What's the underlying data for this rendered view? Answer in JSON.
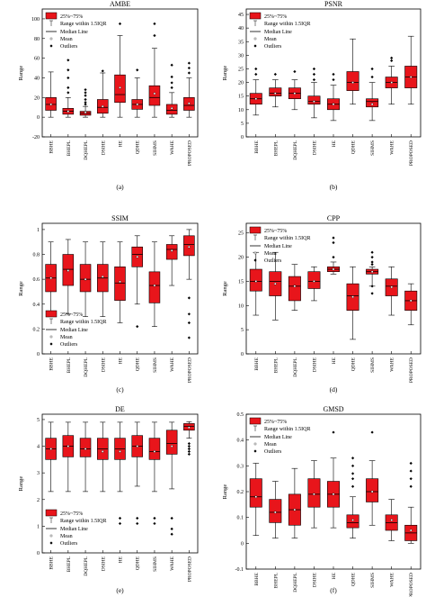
{
  "legend": {
    "box": "25%~75%",
    "range": "Range within 1.5IQR",
    "median": "Median Line",
    "mean": "Mean",
    "outliers": "Outliers"
  },
  "colors": {
    "box_fill": "#e8151b",
    "box_stroke": "#000000"
  },
  "chart_data": [
    {
      "type": "box",
      "title": "AMBE",
      "ylabel": "Range",
      "caption": "(a)",
      "ylim": [
        -20,
        110
      ],
      "yticks": [
        -20,
        0,
        20,
        40,
        60,
        80,
        100
      ],
      "legend_position": "top-left",
      "categories": [
        "BBHE",
        "BHEPL",
        "DQHEPL",
        "DSIHE",
        "HE",
        "QDHE",
        "SIHMS",
        "WAHE",
        "PROPOSED"
      ],
      "boxes": [
        {
          "min": 0,
          "q1": 7,
          "median": 13,
          "q3": 20,
          "max": 46,
          "mean": 13,
          "outliers": []
        },
        {
          "min": 0,
          "q1": 3,
          "median": 6,
          "q3": 9,
          "max": 20,
          "mean": 6,
          "outliers": [
            25,
            30,
            40,
            48,
            58
          ]
        },
        {
          "min": 0,
          "q1": 2,
          "median": 4,
          "q3": 6,
          "max": 11,
          "mean": 5,
          "outliers": [
            13,
            15,
            18,
            22,
            25,
            28
          ]
        },
        {
          "min": 0,
          "q1": 4,
          "median": 10,
          "q3": 18,
          "max": 45,
          "mean": 11,
          "outliers": [
            47
          ]
        },
        {
          "min": 0,
          "q1": 15,
          "median": 23,
          "q3": 43,
          "max": 83,
          "mean": 30,
          "outliers": [
            95
          ]
        },
        {
          "min": 0,
          "q1": 8,
          "median": 13,
          "q3": 18,
          "max": 40,
          "mean": 13,
          "outliers": [
            48
          ]
        },
        {
          "min": 0,
          "q1": 12,
          "median": 20,
          "q3": 32,
          "max": 70,
          "mean": 24,
          "outliers": [
            83,
            95
          ]
        },
        {
          "min": 0,
          "q1": 3,
          "median": 7,
          "q3": 13,
          "max": 25,
          "mean": 9,
          "outliers": [
            30,
            35,
            41,
            53
          ]
        },
        {
          "min": 0,
          "q1": 7,
          "median": 12,
          "q3": 20,
          "max": 40,
          "mean": 14,
          "outliers": [
            45,
            50,
            55
          ]
        }
      ]
    },
    {
      "type": "box",
      "title": "PSNR",
      "ylabel": "Range",
      "caption": "(b)",
      "ylim": [
        0,
        47
      ],
      "yticks": [
        0,
        5,
        10,
        15,
        20,
        25,
        30,
        35,
        40,
        45
      ],
      "legend_position": "top-left",
      "categories": [
        "BBHE",
        "BHEPL",
        "DQHEPL",
        "DSIHE",
        "HE",
        "QDHE",
        "SIHMS",
        "WAHE",
        "PROPOSED"
      ],
      "boxes": [
        {
          "min": 8,
          "q1": 12,
          "median": 14,
          "q3": 16,
          "max": 21,
          "mean": 14,
          "outliers": [
            23,
            25
          ]
        },
        {
          "min": 11,
          "q1": 15,
          "median": 16,
          "q3": 18,
          "max": 21,
          "mean": 16,
          "outliers": [
            23
          ]
        },
        {
          "min": 10,
          "q1": 14,
          "median": 16,
          "q3": 18,
          "max": 21,
          "mean": 16,
          "outliers": [
            24
          ]
        },
        {
          "min": 7,
          "q1": 12,
          "median": 13,
          "q3": 15,
          "max": 20,
          "mean": 13,
          "outliers": [
            21,
            23,
            25
          ]
        },
        {
          "min": 6,
          "q1": 10,
          "median": 12,
          "q3": 14,
          "max": 19,
          "mean": 12,
          "outliers": [
            21,
            23
          ]
        },
        {
          "min": 12,
          "q1": 17,
          "median": 20,
          "q3": 24,
          "max": 36,
          "mean": 20,
          "outliers": []
        },
        {
          "min": 6,
          "q1": 11,
          "median": 13,
          "q3": 14,
          "max": 20,
          "mean": 12,
          "outliers": [
            22,
            25
          ]
        },
        {
          "min": 12,
          "q1": 18,
          "median": 20,
          "q3": 22,
          "max": 26,
          "mean": 20,
          "outliers": [
            28,
            29
          ]
        },
        {
          "min": 12,
          "q1": 18,
          "median": 22,
          "q3": 26,
          "max": 37,
          "mean": 22,
          "outliers": []
        }
      ]
    },
    {
      "type": "box",
      "title": "SSIM",
      "ylabel": "Range",
      "caption": "(c)",
      "ylim": [
        0,
        1.05
      ],
      "yticks": [
        0,
        0.2,
        0.4,
        0.6,
        0.8,
        1
      ],
      "legend_position": "bottom-left",
      "categories": [
        "BBHE",
        "BHEPL",
        "DQHEPL",
        "DSIHE",
        "HE",
        "QDHE",
        "SIHMS",
        "WAHE",
        "PROPOSED"
      ],
      "boxes": [
        {
          "min": 0.3,
          "q1": 0.5,
          "median": 0.61,
          "q3": 0.72,
          "max": 0.9,
          "mean": 0.61,
          "outliers": []
        },
        {
          "min": 0.32,
          "q1": 0.55,
          "median": 0.68,
          "q3": 0.8,
          "max": 0.92,
          "mean": 0.67,
          "outliers": []
        },
        {
          "min": 0.3,
          "q1": 0.5,
          "median": 0.6,
          "q3": 0.72,
          "max": 0.9,
          "mean": 0.6,
          "outliers": []
        },
        {
          "min": 0.3,
          "q1": 0.5,
          "median": 0.61,
          "q3": 0.72,
          "max": 0.9,
          "mean": 0.62,
          "outliers": []
        },
        {
          "min": 0.25,
          "q1": 0.43,
          "median": 0.57,
          "q3": 0.7,
          "max": 0.9,
          "mean": 0.58,
          "outliers": []
        },
        {
          "min": 0.4,
          "q1": 0.7,
          "median": 0.8,
          "q3": 0.86,
          "max": 0.95,
          "mean": 0.78,
          "outliers": [
            0.22
          ]
        },
        {
          "min": 0.22,
          "q1": 0.41,
          "median": 0.55,
          "q3": 0.66,
          "max": 0.9,
          "mean": 0.55,
          "outliers": []
        },
        {
          "min": 0.55,
          "q1": 0.76,
          "median": 0.84,
          "q3": 0.88,
          "max": 0.95,
          "mean": 0.83,
          "outliers": []
        },
        {
          "min": 0.6,
          "q1": 0.79,
          "median": 0.88,
          "q3": 0.95,
          "max": 1.0,
          "mean": 0.86,
          "outliers": [
            0.13,
            0.25,
            0.32,
            0.45
          ]
        }
      ]
    },
    {
      "type": "box",
      "title": "CPP",
      "ylabel": "Range",
      "caption": "(d)",
      "ylim": [
        0,
        27
      ],
      "yticks": [
        0,
        5,
        10,
        15,
        20,
        25
      ],
      "legend_position": "top-left",
      "categories": [
        "BBHE",
        "BHEPL",
        "DQHEPL",
        "DSIHE",
        "HE",
        "QDHE",
        "SIHMS",
        "WAHE",
        "PROPOSED"
      ],
      "boxes": [
        {
          "min": 8,
          "q1": 13,
          "median": 15,
          "q3": 17.5,
          "max": 21,
          "mean": 15,
          "outliers": []
        },
        {
          "min": 7,
          "q1": 12,
          "median": 15,
          "q3": 17,
          "max": 21,
          "mean": 14.5,
          "outliers": []
        },
        {
          "min": 9,
          "q1": 11,
          "median": 14,
          "q3": 16,
          "max": 18.5,
          "mean": 14,
          "outliers": []
        },
        {
          "min": 11,
          "q1": 13.5,
          "median": 15,
          "q3": 17,
          "max": 18,
          "mean": 15,
          "outliers": []
        },
        {
          "min": 16.5,
          "q1": 17,
          "median": 17.5,
          "q3": 18,
          "max": 19,
          "mean": 17.5,
          "outliers": [
            20,
            23,
            24
          ]
        },
        {
          "min": 3,
          "q1": 9,
          "median": 12,
          "q3": 14.5,
          "max": 18,
          "mean": 11.8,
          "outliers": []
        },
        {
          "min": 14,
          "q1": 16.5,
          "median": 17,
          "q3": 17.5,
          "max": 18,
          "mean": 17,
          "outliers": [
            12.5,
            14,
            18.5,
            19,
            20,
            21
          ]
        },
        {
          "min": 8,
          "q1": 12,
          "median": 14,
          "q3": 15.5,
          "max": 18,
          "mean": 13.8,
          "outliers": []
        },
        {
          "min": 6,
          "q1": 9,
          "median": 11,
          "q3": 13,
          "max": 14.5,
          "mean": 11,
          "outliers": []
        }
      ]
    },
    {
      "type": "box",
      "title": "DE",
      "ylabel": "Range",
      "caption": "(e)",
      "ylim": [
        0,
        5.2
      ],
      "yticks": [
        0,
        1,
        2,
        3,
        4,
        5
      ],
      "legend_position": "bottom-left",
      "categories": [
        "BBHE",
        "BHEPL",
        "DQHEPL",
        "DSIHE",
        "HE",
        "QDHE",
        "SIHMS",
        "WAHE",
        "PROPOSED"
      ],
      "boxes": [
        {
          "min": 2.3,
          "q1": 3.5,
          "median": 3.9,
          "q3": 4.3,
          "max": 4.9,
          "mean": 3.9,
          "outliers": []
        },
        {
          "min": 2.3,
          "q1": 3.6,
          "median": 4.0,
          "q3": 4.4,
          "max": 4.9,
          "mean": 4.0,
          "outliers": []
        },
        {
          "min": 2.3,
          "q1": 3.6,
          "median": 3.9,
          "q3": 4.3,
          "max": 4.9,
          "mean": 3.9,
          "outliers": []
        },
        {
          "min": 2.3,
          "q1": 3.5,
          "median": 3.9,
          "q3": 4.3,
          "max": 4.9,
          "mean": 3.8,
          "outliers": []
        },
        {
          "min": 2.3,
          "q1": 3.5,
          "median": 3.9,
          "q3": 4.3,
          "max": 4.9,
          "mean": 3.8,
          "outliers": [
            1.1,
            1.3
          ]
        },
        {
          "min": 2.5,
          "q1": 3.6,
          "median": 4.0,
          "q3": 4.4,
          "max": 4.9,
          "mean": 4.0,
          "outliers": [
            1.1,
            1.3
          ]
        },
        {
          "min": 2.3,
          "q1": 3.5,
          "median": 3.8,
          "q3": 4.3,
          "max": 4.9,
          "mean": 3.8,
          "outliers": [
            1.1,
            1.3
          ]
        },
        {
          "min": 2.4,
          "q1": 3.7,
          "median": 4.1,
          "q3": 4.6,
          "max": 4.9,
          "mean": 4.0,
          "outliers": [
            0.7,
            0.9,
            1.3
          ]
        },
        {
          "min": 4.3,
          "q1": 4.6,
          "median": 4.75,
          "q3": 4.85,
          "max": 4.92,
          "mean": 4.7,
          "outliers": [
            3.7,
            3.8,
            3.9,
            4.0,
            4.1
          ]
        }
      ]
    },
    {
      "type": "box",
      "title": "GMSD",
      "ylabel": "Range",
      "caption": "(f)",
      "ylim": [
        -0.1,
        0.5
      ],
      "yticks": [
        -0.1,
        0,
        0.1,
        0.2,
        0.3,
        0.4,
        0.5
      ],
      "legend_position": "top-left",
      "categories": [
        "BBHE",
        "BHEPL",
        "DQHEPL",
        "DSIHE",
        "HE",
        "QDHE",
        "SIHMS",
        "WAHE",
        "PROPOSED"
      ],
      "boxes": [
        {
          "min": 0.03,
          "q1": 0.14,
          "median": 0.18,
          "q3": 0.25,
          "max": 0.31,
          "mean": 0.18,
          "outliers": []
        },
        {
          "min": 0.02,
          "q1": 0.08,
          "median": 0.12,
          "q3": 0.17,
          "max": 0.24,
          "mean": 0.12,
          "outliers": []
        },
        {
          "min": 0.02,
          "q1": 0.07,
          "median": 0.13,
          "q3": 0.19,
          "max": 0.29,
          "mean": 0.13,
          "outliers": []
        },
        {
          "min": 0.06,
          "q1": 0.14,
          "median": 0.19,
          "q3": 0.25,
          "max": 0.32,
          "mean": 0.19,
          "outliers": []
        },
        {
          "min": 0.06,
          "q1": 0.14,
          "median": 0.19,
          "q3": 0.24,
          "max": 0.33,
          "mean": 0.19,
          "outliers": [
            0.43
          ]
        },
        {
          "min": 0.02,
          "q1": 0.06,
          "median": 0.08,
          "q3": 0.11,
          "max": 0.18,
          "mean": 0.09,
          "outliers": [
            0.22,
            0.25,
            0.27,
            0.3,
            0.33
          ]
        },
        {
          "min": 0.07,
          "q1": 0.16,
          "median": 0.2,
          "q3": 0.25,
          "max": 0.32,
          "mean": 0.2,
          "outliers": [
            0.43
          ]
        },
        {
          "min": 0.01,
          "q1": 0.05,
          "median": 0.08,
          "q3": 0.11,
          "max": 0.17,
          "mean": 0.09,
          "outliers": []
        },
        {
          "min": 0.0,
          "q1": 0.01,
          "median": 0.04,
          "q3": 0.07,
          "max": 0.14,
          "mean": 0.05,
          "outliers": [
            0.22,
            0.25,
            0.28,
            0.31
          ]
        }
      ]
    }
  ]
}
